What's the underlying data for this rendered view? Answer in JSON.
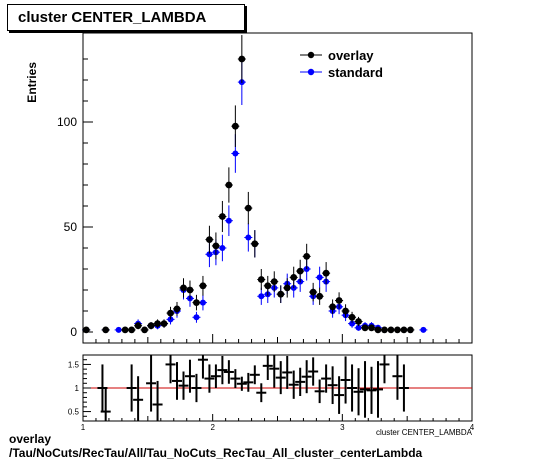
{
  "title": "cluster CENTER_LAMBDA",
  "footer": {
    "line1": "overlay",
    "line2": "/Tau/NoCuts/RecTau/All/Tau_NoCuts_RecTau_All_cluster_centerLambda"
  },
  "colors": {
    "overlay": "#000000",
    "standard": "#0000ff",
    "ratio_line": "#cc0000"
  },
  "chart_data": [
    {
      "type": "scatter",
      "panel": "main",
      "ylabel": "Entries",
      "xlabel": "",
      "xlim": [
        1,
        4
      ],
      "ylim": [
        0,
        130
      ],
      "yticks": [
        0,
        50,
        100
      ],
      "ytick_labels": [
        "0",
        "50",
        "100"
      ],
      "legend_position": "top-right",
      "series": [
        {
          "name": "overlay",
          "color": "#000000",
          "x": [
            1.025,
            1.175,
            1.325,
            1.375,
            1.425,
            1.475,
            1.525,
            1.575,
            1.625,
            1.675,
            1.725,
            1.775,
            1.825,
            1.875,
            1.925,
            1.975,
            2.025,
            2.075,
            2.125,
            2.175,
            2.225,
            2.275,
            2.325,
            2.375,
            2.425,
            2.475,
            2.525,
            2.575,
            2.625,
            2.675,
            2.725,
            2.775,
            2.825,
            2.875,
            2.925,
            2.975,
            3.025,
            3.075,
            3.125,
            3.175,
            3.225,
            3.275,
            3.325,
            3.375,
            3.425,
            3.475,
            3.525
          ],
          "y": [
            1,
            1,
            1,
            1,
            3,
            1,
            3,
            4,
            4,
            9,
            11,
            21,
            20,
            14,
            22,
            44,
            41,
            55,
            70,
            98,
            130,
            59,
            42,
            25,
            22,
            24,
            18,
            21,
            26,
            29,
            36,
            19,
            17,
            28,
            12,
            15,
            10,
            7,
            5,
            2,
            2,
            1,
            1,
            1,
            1,
            1,
            1
          ],
          "err": [
            1,
            1,
            1,
            1,
            1.7,
            1,
            1.7,
            2,
            2,
            3,
            3.3,
            4.6,
            4.5,
            3.7,
            4.7,
            6.6,
            6.4,
            7.4,
            8.4,
            9.9,
            11.4,
            7.7,
            6.5,
            5,
            4.7,
            4.9,
            4.2,
            4.6,
            5.1,
            5.4,
            6,
            4.4,
            4.1,
            5.3,
            3.5,
            3.9,
            3.2,
            2.6,
            2.2,
            1.4,
            1.4,
            1,
            1,
            1,
            1,
            1,
            1
          ]
        },
        {
          "name": "standard",
          "color": "#0000ff",
          "x": [
            1.025,
            1.175,
            1.275,
            1.425,
            1.525,
            1.575,
            1.625,
            1.675,
            1.725,
            1.775,
            1.825,
            1.875,
            1.925,
            1.975,
            2.025,
            2.075,
            2.125,
            2.175,
            2.225,
            2.275,
            2.325,
            2.375,
            2.425,
            2.475,
            2.525,
            2.575,
            2.625,
            2.675,
            2.725,
            2.775,
            2.825,
            2.875,
            2.925,
            2.975,
            3.025,
            3.075,
            3.125,
            3.175,
            3.225,
            3.275,
            3.325,
            3.375,
            3.475,
            3.625
          ],
          "y": [
            1,
            1,
            1,
            4,
            3,
            3,
            4,
            6,
            10,
            20,
            16,
            7,
            14,
            37,
            38,
            40,
            53,
            85,
            119,
            45,
            42,
            17,
            18,
            21,
            18,
            23,
            21,
            24,
            30,
            17,
            26,
            24,
            10,
            12,
            8,
            4,
            2,
            3,
            3,
            2,
            1,
            1,
            1,
            1
          ],
          "err": [
            1,
            1,
            1,
            2,
            1.7,
            1.7,
            2,
            2.4,
            3.2,
            4.5,
            4,
            2.6,
            3.7,
            6.1,
            6.2,
            6.3,
            7.3,
            9.2,
            10.9,
            6.7,
            6.5,
            4.1,
            4.2,
            4.6,
            4.2,
            4.8,
            4.6,
            4.9,
            5.5,
            4.1,
            5.1,
            4.9,
            3.2,
            3.5,
            2.8,
            2,
            1.4,
            1.7,
            1.7,
            1.4,
            1,
            1,
            1,
            1
          ]
        }
      ]
    },
    {
      "type": "scatter",
      "panel": "ratio",
      "xlabel": "cluster CENTER_LAMBDA",
      "xlim": [
        1,
        4
      ],
      "ylim": [
        0.3,
        1.7
      ],
      "xticks": [
        1,
        2,
        3,
        4
      ],
      "xtick_labels": [
        "1",
        "2",
        "3",
        "4"
      ],
      "yticks": [
        0.5,
        1,
        1.5
      ],
      "ytick_labels": [
        "0.5",
        "1",
        "1.5"
      ],
      "reference_line": 1,
      "series": [
        {
          "name": "",
          "color": "#000000",
          "x": [
            1.15,
            1.175,
            1.375,
            1.425,
            1.525,
            1.575,
            1.675,
            1.725,
            1.775,
            1.825,
            1.875,
            1.925,
            1.975,
            2.025,
            2.075,
            2.125,
            2.175,
            2.225,
            2.275,
            2.325,
            2.375,
            2.425,
            2.475,
            2.525,
            2.575,
            2.625,
            2.675,
            2.725,
            2.775,
            2.825,
            2.875,
            2.925,
            2.975,
            3.025,
            3.075,
            3.125,
            3.175,
            3.225,
            3.275,
            3.325,
            3.425,
            3.475
          ],
          "y": [
            1,
            0.5,
            1,
            0.75,
            1.1,
            0.65,
            1.5,
            1.15,
            1.05,
            1.25,
            1.0,
            1.6,
            1.2,
            1.25,
            1.38,
            1.34,
            1.2,
            1.09,
            1.12,
            1.28,
            0.9,
            1.47,
            1.41,
            1.22,
            1.33,
            1.07,
            1.13,
            1.24,
            1.35,
            0.93,
            1.2,
            1.06,
            0.85,
            1.17,
            1.0,
            0.92,
            0.97,
            0.95,
            0.97,
            1.5,
            1.25,
            1.0
          ],
          "err": [
            0.5,
            0.5,
            0.5,
            0.5,
            0.6,
            0.5,
            0.4,
            0.4,
            0.3,
            0.35,
            0.3,
            0.4,
            0.3,
            0.25,
            0.3,
            0.25,
            0.2,
            0.15,
            0.2,
            0.2,
            0.2,
            0.3,
            0.4,
            0.35,
            0.35,
            0.3,
            0.3,
            0.35,
            0.3,
            0.25,
            0.3,
            0.4,
            0.4,
            0.5,
            0.5,
            0.5,
            0.6,
            0.5,
            0.6,
            0.4,
            0.5,
            0.5
          ]
        }
      ]
    }
  ]
}
